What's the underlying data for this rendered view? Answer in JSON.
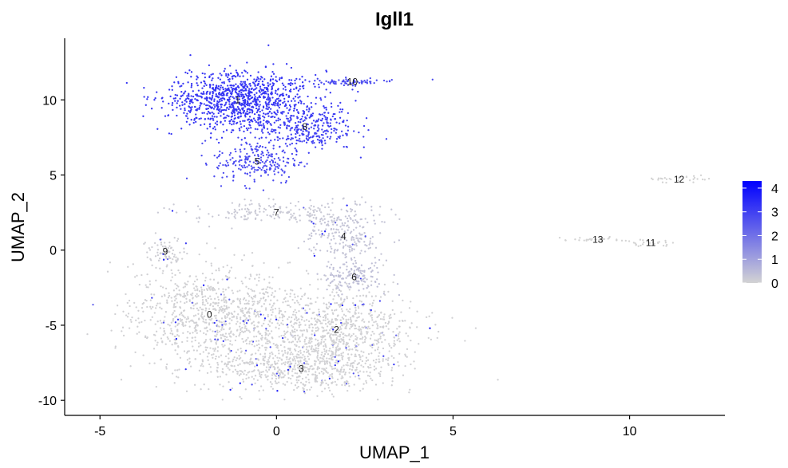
{
  "chart_data": {
    "type": "scatter",
    "title": "Igll1",
    "xlabel": "UMAP_1",
    "ylabel": "UMAP_2",
    "xlim": [
      -6,
      12.7
    ],
    "ylim": [
      -11,
      14.1
    ],
    "xticks": [
      -5,
      0,
      5,
      10
    ],
    "yticks": [
      -10,
      -5,
      0,
      5,
      10
    ],
    "grid": false,
    "color_scale": {
      "low_color": "#d3d3d3",
      "high_color": "#0000ff",
      "min": 0,
      "max": 4.3,
      "ticks": [
        0,
        1,
        2,
        3,
        4
      ],
      "legend_position": "right"
    },
    "clusters": [
      {
        "label": "0",
        "x": -1.9,
        "y": -4.3,
        "expression": 0.05
      },
      {
        "label": "1",
        "x": -1.1,
        "y": 10.0,
        "expression": 3.2
      },
      {
        "label": "2",
        "x": 1.7,
        "y": -5.3,
        "expression": 0.05
      },
      {
        "label": "3",
        "x": 0.7,
        "y": -7.9,
        "expression": 0.05
      },
      {
        "label": "4",
        "x": 1.9,
        "y": 0.9,
        "expression": 0.3
      },
      {
        "label": "5",
        "x": -0.55,
        "y": 5.9,
        "expression": 2.8
      },
      {
        "label": "6",
        "x": 2.2,
        "y": -1.8,
        "expression": 0.4
      },
      {
        "label": "7",
        "x": 0.0,
        "y": 2.5,
        "expression": 0.2
      },
      {
        "label": "8",
        "x": 0.8,
        "y": 8.2,
        "expression": 3.0
      },
      {
        "label": "9",
        "x": -3.15,
        "y": -0.1,
        "expression": 0.1
      },
      {
        "label": "10",
        "x": 2.15,
        "y": 11.2,
        "expression": 2.8
      },
      {
        "label": "11",
        "x": 10.6,
        "y": 0.5,
        "expression": 0.0
      },
      {
        "label": "12",
        "x": 11.4,
        "y": 4.7,
        "expression": 0.0
      },
      {
        "label": "13",
        "x": 9.1,
        "y": 0.7,
        "expression": 0.0
      }
    ]
  }
}
